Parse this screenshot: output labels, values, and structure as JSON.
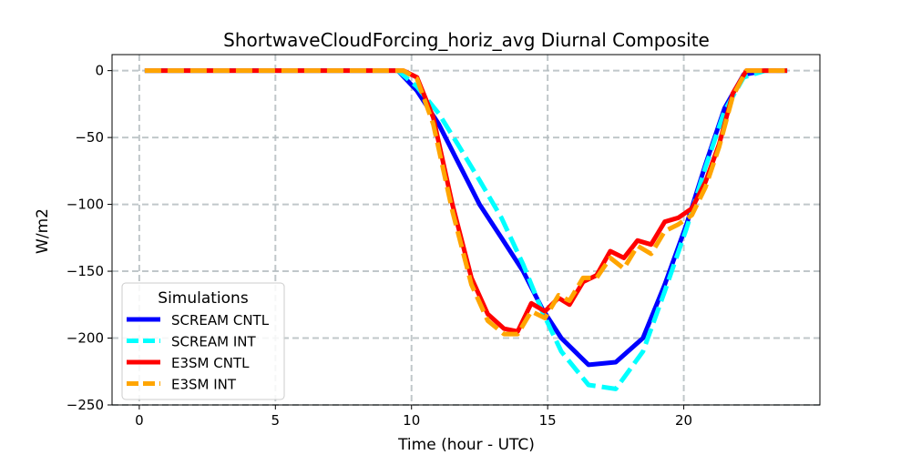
{
  "chart_data": {
    "type": "line",
    "title": "ShortwaveCloudForcing_horiz_avg Diurnal Composite",
    "xlabel": "Time (hour - UTC)",
    "ylabel": "W/m2",
    "xlim": [
      -1,
      25
    ],
    "ylim": [
      -250,
      12
    ],
    "xticks": [
      0,
      5,
      10,
      15,
      20
    ],
    "yticks": [
      0,
      -50,
      -100,
      -150,
      -200,
      -250
    ],
    "grid": true,
    "legend": {
      "title": "Simulations",
      "placement": "lower-left"
    },
    "series": [
      {
        "name": "SCREAM CNTL",
        "color": "#0000ff",
        "style": "solid",
        "x": [
          0.2,
          9.5,
          10.2,
          11.0,
          11.7,
          12.5,
          13.3,
          14.1,
          14.8,
          15.5,
          16.5,
          17.5,
          18.5,
          19.3,
          20.1,
          20.8,
          21.5,
          22.2,
          23.0,
          23.8
        ],
        "y": [
          0,
          0,
          -15,
          -40,
          -68,
          -100,
          -125,
          -150,
          -178,
          -200,
          -220,
          -218,
          -200,
          -160,
          -115,
          -70,
          -28,
          -3,
          0,
          0
        ]
      },
      {
        "name": "SCREAM INT",
        "color": "#00ffff",
        "style": "dashed",
        "x": [
          0.2,
          9.5,
          10.2,
          11.0,
          11.7,
          12.5,
          13.3,
          14.1,
          14.8,
          15.5,
          16.5,
          17.5,
          18.5,
          19.3,
          20.1,
          20.8,
          21.5,
          22.2,
          23.0,
          23.8
        ],
        "y": [
          0,
          0,
          -12,
          -32,
          -55,
          -82,
          -110,
          -145,
          -180,
          -210,
          -235,
          -238,
          -210,
          -165,
          -118,
          -72,
          -30,
          -5,
          0,
          0
        ]
      },
      {
        "name": "E3SM CNTL",
        "color": "#ff0000",
        "style": "solid",
        "x": [
          0.2,
          9.7,
          10.2,
          10.8,
          11.5,
          12.2,
          12.8,
          13.4,
          13.9,
          14.4,
          14.9,
          15.4,
          15.8,
          16.3,
          16.8,
          17.3,
          17.8,
          18.3,
          18.8,
          19.3,
          19.8,
          20.3,
          20.8,
          21.3,
          21.8,
          22.3,
          23.0,
          23.8
        ],
        "y": [
          0,
          0,
          -5,
          -35,
          -100,
          -155,
          -182,
          -193,
          -195,
          -174,
          -180,
          -170,
          -175,
          -158,
          -153,
          -135,
          -140,
          -127,
          -130,
          -113,
          -110,
          -103,
          -83,
          -55,
          -17,
          0,
          0,
          0
        ]
      },
      {
        "name": "E3SM INT",
        "color": "#ffa500",
        "style": "dashed",
        "x": [
          0.2,
          9.7,
          10.2,
          10.8,
          11.5,
          12.2,
          12.8,
          13.4,
          13.9,
          14.4,
          14.9,
          15.4,
          15.8,
          16.3,
          16.8,
          17.3,
          17.8,
          18.3,
          18.8,
          19.3,
          19.8,
          20.3,
          20.8,
          21.3,
          21.8,
          22.3,
          23.0,
          23.8
        ],
        "y": [
          0,
          0,
          -6,
          -40,
          -105,
          -160,
          -187,
          -197,
          -197,
          -180,
          -185,
          -168,
          -172,
          -155,
          -155,
          -140,
          -148,
          -131,
          -137,
          -120,
          -115,
          -108,
          -87,
          -57,
          -19,
          0,
          0,
          0
        ]
      }
    ]
  }
}
